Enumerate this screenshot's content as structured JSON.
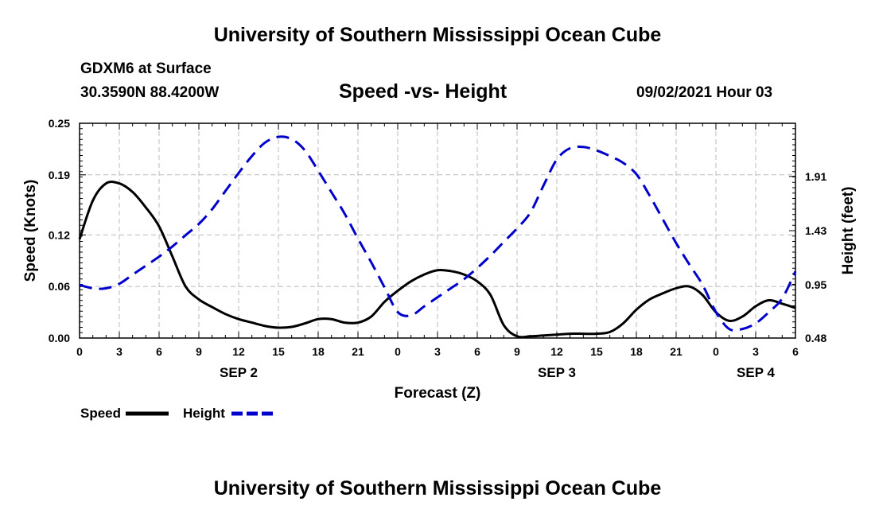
{
  "header": {
    "title": "University of Southern Mississippi Ocean Cube",
    "station": "GDXM6 at Surface",
    "coords": "30.3590N  88.4200W",
    "chart_title": "Speed -vs- Height",
    "timestamp": "09/02/2021 Hour 03"
  },
  "footer": {
    "title": "University of Southern Mississippi Ocean Cube"
  },
  "colors": {
    "speed": "#000000",
    "height": "#0000cc",
    "grid": "#bbbbbb"
  },
  "chart_data": {
    "type": "line",
    "title": "Speed -vs- Height",
    "xlabel": "Forecast (Z)",
    "ylabel": "Speed (Knots)",
    "y2label": "Height (feet)",
    "xlim": [
      0,
      54
    ],
    "ylim": [
      0,
      0.25
    ],
    "y2lim": [
      0.48,
      2.38
    ],
    "x_ticks": [
      0,
      3,
      6,
      9,
      12,
      15,
      18,
      21,
      24,
      27,
      30,
      33,
      36,
      39,
      42,
      45,
      48,
      51,
      54
    ],
    "x_tick_labels": [
      "0",
      "3",
      "6",
      "9",
      "12",
      "15",
      "18",
      "21",
      "0",
      "3",
      "6",
      "9",
      "12",
      "15",
      "18",
      "21",
      "0",
      "3",
      "6"
    ],
    "y_ticks": [
      0.0,
      0.06,
      0.12,
      0.19,
      0.25
    ],
    "y_tick_labels": [
      "0.00",
      "0.06",
      "0.12",
      "0.19",
      "0.25"
    ],
    "y2_ticks": [
      0.48,
      0.95,
      1.43,
      1.91
    ],
    "y2_tick_labels": [
      "0.48",
      "0.95",
      "1.43",
      "1.91"
    ],
    "day_labels": [
      {
        "x": 12,
        "label": "SEP 2"
      },
      {
        "x": 36,
        "label": "SEP 3"
      },
      {
        "x": 51,
        "label": "SEP 4"
      }
    ],
    "grid": true,
    "legend_position": "bottom-left",
    "series": [
      {
        "name": "Speed",
        "axis": "left",
        "style": "solid",
        "x": [
          0,
          1,
          2,
          3,
          4,
          5,
          6,
          7,
          8,
          9,
          10,
          11,
          12,
          13,
          14,
          15,
          16,
          17,
          18,
          19,
          20,
          21,
          22,
          23,
          24,
          25,
          26,
          27,
          28,
          29,
          30,
          31,
          32,
          33,
          34,
          35,
          36,
          37,
          38,
          39,
          40,
          41,
          42,
          43,
          44,
          45,
          46,
          47,
          48,
          49,
          50,
          51,
          52,
          53,
          54
        ],
        "values": [
          0.115,
          0.16,
          0.18,
          0.18,
          0.17,
          0.152,
          0.13,
          0.095,
          0.06,
          0.045,
          0.036,
          0.028,
          0.022,
          0.018,
          0.014,
          0.012,
          0.013,
          0.017,
          0.022,
          0.022,
          0.018,
          0.018,
          0.025,
          0.042,
          0.055,
          0.066,
          0.074,
          0.079,
          0.078,
          0.074,
          0.066,
          0.05,
          0.015,
          0.002,
          0.002,
          0.003,
          0.004,
          0.005,
          0.005,
          0.005,
          0.007,
          0.017,
          0.033,
          0.045,
          0.052,
          0.058,
          0.06,
          0.05,
          0.03,
          0.02,
          0.025,
          0.037,
          0.044,
          0.04,
          0.035
        ]
      },
      {
        "name": "Height",
        "axis": "right",
        "style": "dashed",
        "x": [
          0,
          1,
          2,
          3,
          4,
          5,
          6,
          7,
          8,
          9,
          10,
          11,
          12,
          13,
          14,
          15,
          16,
          17,
          18,
          19,
          20,
          21,
          22,
          23,
          24,
          25,
          26,
          27,
          28,
          29,
          30,
          31,
          32,
          33,
          34,
          35,
          36,
          37,
          38,
          39,
          40,
          41,
          42,
          43,
          44,
          45,
          46,
          47,
          48,
          49,
          50,
          51,
          52,
          53,
          54
        ],
        "values": [
          0.95,
          0.92,
          0.92,
          0.96,
          1.04,
          1.12,
          1.2,
          1.29,
          1.39,
          1.49,
          1.62,
          1.78,
          1.94,
          2.09,
          2.21,
          2.26,
          2.24,
          2.14,
          1.96,
          1.77,
          1.58,
          1.36,
          1.15,
          0.93,
          0.71,
          0.68,
          0.76,
          0.84,
          0.92,
          1.0,
          1.1,
          1.21,
          1.33,
          1.45,
          1.59,
          1.83,
          2.06,
          2.16,
          2.17,
          2.14,
          2.09,
          2.03,
          1.93,
          1.74,
          1.53,
          1.32,
          1.13,
          0.95,
          0.71,
          0.56,
          0.56,
          0.61,
          0.71,
          0.83,
          1.07
        ]
      }
    ]
  }
}
